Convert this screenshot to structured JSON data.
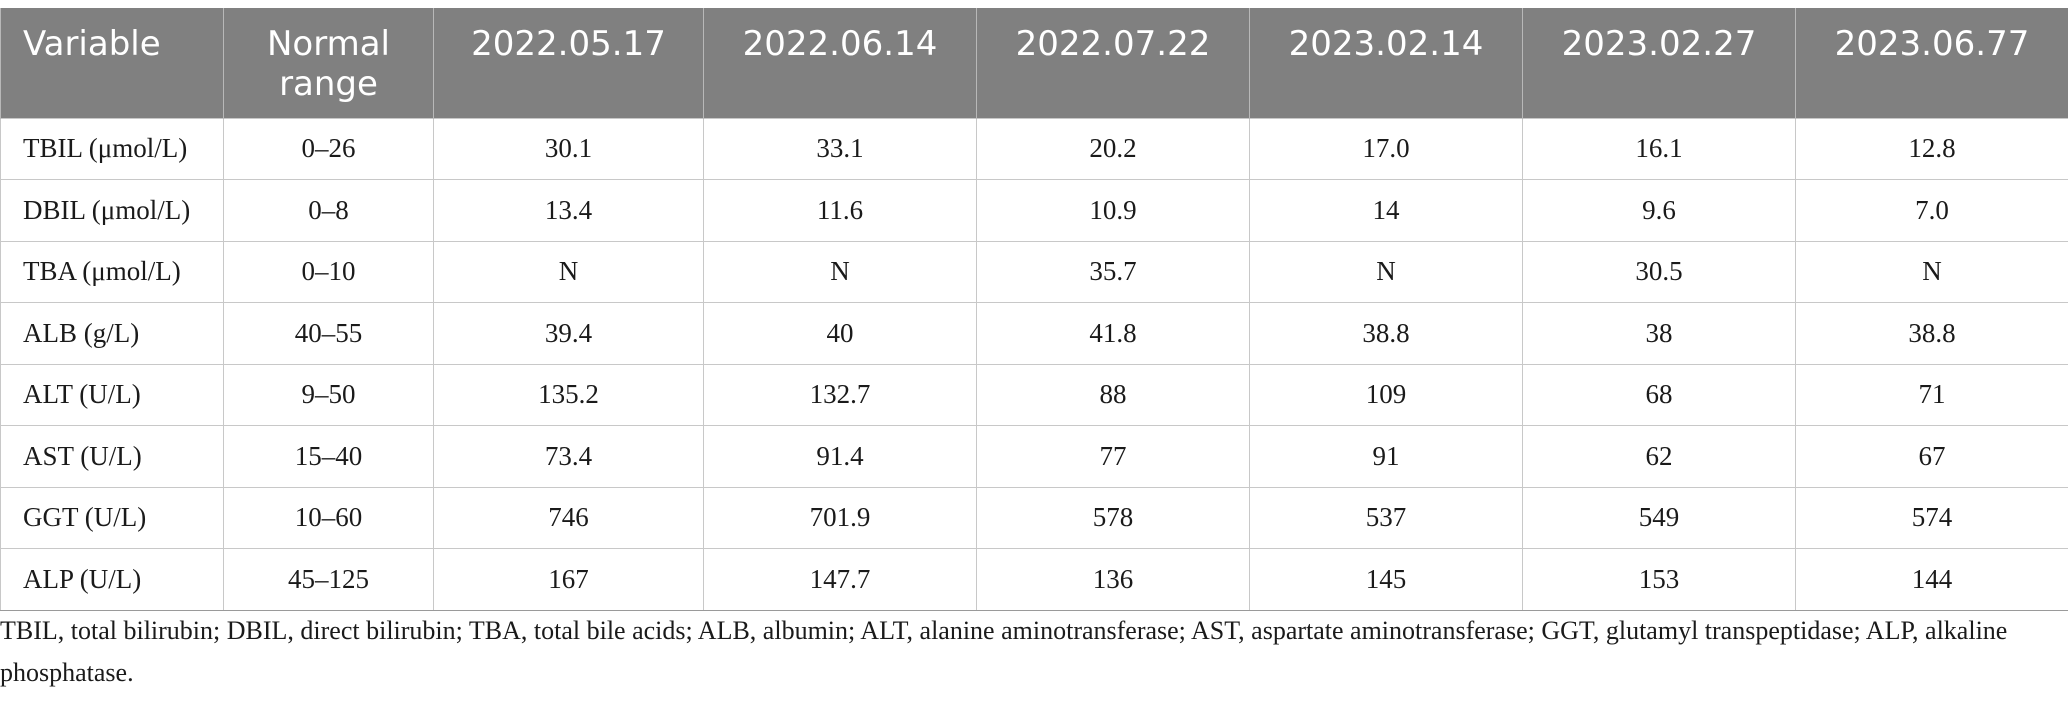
{
  "table": {
    "headers": [
      "Variable",
      "Normal range",
      "2022.05.17",
      "2022.06.14",
      "2022.07.22",
      "2023.02.14",
      "2023.02.27",
      "2023.06.77"
    ],
    "rows": [
      [
        "TBIL (μmol/L)",
        "0–26",
        "30.1",
        "33.1",
        "20.2",
        "17.0",
        "16.1",
        "12.8"
      ],
      [
        "DBIL (μmol/L)",
        "0–8",
        "13.4",
        "11.6",
        "10.9",
        "14",
        "9.6",
        "7.0"
      ],
      [
        "TBA (μmol/L)",
        "0–10",
        "N",
        "N",
        "35.7",
        "N",
        "30.5",
        "N"
      ],
      [
        "ALB (g/L)",
        "40–55",
        "39.4",
        "40",
        "41.8",
        "38.8",
        "38",
        "38.8"
      ],
      [
        "ALT (U/L)",
        "9–50",
        "135.2",
        "132.7",
        "88",
        "109",
        "68",
        "71"
      ],
      [
        "AST (U/L)",
        "15–40",
        "73.4",
        "91.4",
        "77",
        "91",
        "62",
        "67"
      ],
      [
        "GGT (U/L)",
        "10–60",
        "746",
        "701.9",
        "578",
        "537",
        "549",
        "574"
      ],
      [
        "ALP (U/L)",
        "45–125",
        "167",
        "147.7",
        "136",
        "145",
        "153",
        "144"
      ]
    ]
  },
  "footnote": "TBIL, total bilirubin; DBIL, direct bilirubin; TBA, total bile acids; ALB, albumin; ALT, alanine aminotransferase; AST, aspartate aminotransferase; GGT, glutamyl transpeptidase; ALP, alkaline phosphatase.",
  "colors": {
    "header_background": "#808080",
    "header_text": "#ffffff",
    "grid_line": "#c8c8c8"
  }
}
